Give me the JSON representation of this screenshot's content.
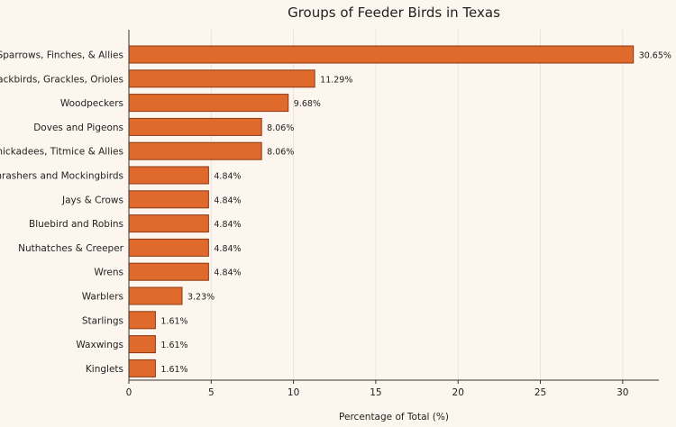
{
  "chart_data": {
    "type": "bar",
    "orientation": "horizontal",
    "title": "Groups of Feeder Birds in Texas",
    "xlabel": "Percentage of Total (%)",
    "ylabel": "",
    "xlim": [
      0,
      32.2
    ],
    "xticks": [
      0,
      5,
      10,
      15,
      20,
      25,
      30
    ],
    "grid": "vertical",
    "categories": [
      "Sparrows, Finches, & Allies",
      "Blackbirds, Grackles, Orioles",
      "Woodpeckers",
      "Doves and Pigeons",
      "Chickadees, Titmice & Allies",
      "Thrashers and Mockingbirds",
      "Jays & Crows",
      "Bluebird and Robins",
      "Nuthatches & Creeper",
      "Wrens",
      "Warblers",
      "Starlings",
      "Waxwings",
      "Kinglets"
    ],
    "values": [
      30.65,
      11.29,
      9.68,
      8.06,
      8.06,
      4.84,
      4.84,
      4.84,
      4.84,
      4.84,
      3.23,
      1.61,
      1.61,
      1.61
    ],
    "value_labels": [
      "30.65%",
      "11.29%",
      "9.68%",
      "8.06%",
      "8.06%",
      "4.84%",
      "4.84%",
      "4.84%",
      "4.84%",
      "4.84%",
      "3.23%",
      "1.61%",
      "1.61%",
      "1.61%"
    ],
    "colors": {
      "bar_fill": "#e06a2c",
      "bar_stroke": "#8a3a14",
      "background": "#fdf6ee",
      "axis": "#333333",
      "grid": "#e6e0da"
    }
  }
}
